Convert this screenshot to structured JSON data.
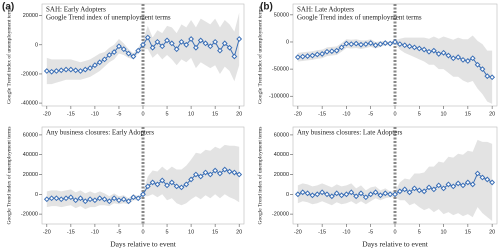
{
  "panel_labels": [
    "(a)",
    "(b)"
  ],
  "chart_data": [
    {
      "type": "line",
      "title": "SAH: Early Adopters",
      "subtitle": "Google Trend index of unemployment terms",
      "ylabel": "Google Trend index of unemployment terms",
      "x": [
        -20,
        -19,
        -18,
        -17,
        -16,
        -15,
        -14,
        -13,
        -12,
        -11,
        -10,
        -9,
        -8,
        -7,
        -6,
        -5,
        -4,
        -3,
        -2,
        -1,
        0,
        1,
        2,
        3,
        4,
        5,
        6,
        7,
        8,
        9,
        10,
        11,
        12,
        13,
        14,
        15,
        16,
        17,
        18,
        19,
        20
      ],
      "values": [
        -18000,
        -18500,
        -18000,
        -17500,
        -17000,
        -17000,
        -17500,
        -18000,
        -17000,
        -16000,
        -14000,
        -12000,
        -10000,
        -7000,
        -5000,
        -1000,
        -3000,
        -6000,
        -8000,
        -4000,
        0,
        5000,
        -2000,
        2000,
        -1000,
        3000,
        1000,
        -3000,
        2000,
        0,
        4000,
        -2000,
        3000,
        1000,
        -1000,
        2000,
        -4000,
        1000,
        -2000,
        -8000,
        4000
      ],
      "lower": [
        -27000,
        -27000,
        -26000,
        -25000,
        -24000,
        -24000,
        -24000,
        -24000,
        -23000,
        -22000,
        -20000,
        -18000,
        -15000,
        -12000,
        -10000,
        -6000,
        -7000,
        -9000,
        -10000,
        -6000,
        -3000,
        -3000,
        -9000,
        -6000,
        -10000,
        -7000,
        -10000,
        -14000,
        -10000,
        -12000,
        -9000,
        -16000,
        -12000,
        -14000,
        -16000,
        -14000,
        -20000,
        -15000,
        -18000,
        -25000,
        -14000
      ],
      "upper": [
        -9000,
        -10000,
        -10000,
        -10000,
        -10000,
        -10000,
        -11000,
        -12000,
        -11000,
        -10000,
        -8000,
        -6000,
        -5000,
        -2000,
        0,
        4000,
        1000,
        -3000,
        -6000,
        -2000,
        3000,
        13000,
        5000,
        10000,
        8000,
        13000,
        12000,
        8000,
        14000,
        12000,
        17000,
        12000,
        18000,
        16000,
        14000,
        18000,
        12000,
        17000,
        14000,
        9000,
        22000
      ],
      "color": "#3b6fb6",
      "band_color": "#e3e3e3",
      "event_x": 0,
      "xlim": [
        -21,
        21
      ],
      "xticks": [
        -20,
        -15,
        -10,
        -5,
        0,
        5,
        10,
        15,
        20
      ],
      "ylim": [
        -42000,
        28000
      ],
      "yticks": [
        20000,
        0,
        -20000,
        -40000
      ]
    },
    {
      "type": "line",
      "title": "Any business closures: Early Adopters",
      "ylabel": "Google Trend index of unemployment terms",
      "xlabel": "Days relative to event",
      "x": [
        -20,
        -19,
        -18,
        -17,
        -16,
        -15,
        -14,
        -13,
        -12,
        -11,
        -10,
        -9,
        -8,
        -7,
        -6,
        -5,
        -4,
        -3,
        -2,
        -1,
        0,
        1,
        2,
        3,
        4,
        5,
        6,
        7,
        8,
        9,
        10,
        11,
        12,
        13,
        14,
        15,
        16,
        17,
        18,
        19,
        20
      ],
      "values": [
        -5000,
        -4000,
        -4000,
        -5000,
        -4000,
        -3000,
        -6000,
        -4000,
        -7000,
        -5000,
        -6000,
        -4000,
        -5000,
        -7000,
        -4000,
        -6000,
        -5000,
        -7000,
        -3000,
        -4000,
        0,
        8000,
        12000,
        10000,
        14000,
        9000,
        12000,
        8000,
        7000,
        10000,
        15000,
        20000,
        18000,
        22000,
        20000,
        24000,
        21000,
        25000,
        23000,
        22000,
        20000
      ],
      "lower": [
        -13000,
        -12000,
        -12000,
        -13000,
        -12000,
        -11000,
        -14000,
        -12000,
        -15000,
        -13000,
        -13000,
        -11000,
        -11000,
        -12000,
        -9000,
        -10000,
        -9000,
        -10000,
        -6000,
        -6000,
        -2000,
        -2000,
        0,
        -3000,
        0,
        -6000,
        -4000,
        -9000,
        -11000,
        -9000,
        -5000,
        -2000,
        -5000,
        -1000,
        -4000,
        0,
        -4000,
        0,
        -3000,
        -5000,
        -8000
      ],
      "upper": [
        3000,
        4000,
        4000,
        3000,
        4000,
        5000,
        2000,
        4000,
        1000,
        3000,
        1000,
        3000,
        1000,
        -2000,
        1000,
        -2000,
        -1000,
        -4000,
        0,
        -2000,
        2000,
        18000,
        24000,
        23000,
        28000,
        24000,
        28000,
        25000,
        25000,
        29000,
        35000,
        42000,
        41000,
        45000,
        44000,
        48000,
        46000,
        50000,
        49000,
        49000,
        48000
      ],
      "color": "#3b6fb6",
      "band_color": "#e3e3e3",
      "event_x": 0,
      "xlim": [
        -21,
        21
      ],
      "xticks": [
        -20,
        -15,
        -10,
        -5,
        0,
        5,
        10,
        15,
        20
      ],
      "ylim": [
        -30000,
        68000
      ],
      "yticks": [
        60000,
        40000,
        20000,
        0,
        -20000
      ]
    },
    {
      "type": "line",
      "title": "SAH: Late Adopters",
      "subtitle": "Google Trend index of unemployment terms",
      "ylabel": "Google Trend index of unemployment terms",
      "x": [
        -20,
        -19,
        -18,
        -17,
        -16,
        -15,
        -14,
        -13,
        -12,
        -11,
        -10,
        -9,
        -8,
        -7,
        -6,
        -5,
        -4,
        -3,
        -2,
        -1,
        0,
        1,
        2,
        3,
        4,
        5,
        6,
        7,
        8,
        9,
        10,
        11,
        12,
        13,
        14,
        15,
        16,
        17,
        18,
        19,
        20
      ],
      "values": [
        -28000,
        -27000,
        -26000,
        -25000,
        -23000,
        -22000,
        -18000,
        -17000,
        -16000,
        -10000,
        -3000,
        -4000,
        -3000,
        -5000,
        -4000,
        -2000,
        -6000,
        -4000,
        -2000,
        -3000,
        0,
        -4000,
        -6000,
        -8000,
        -10000,
        -12000,
        -14000,
        -18000,
        -16000,
        -22000,
        -20000,
        -25000,
        -30000,
        -28000,
        -33000,
        -35000,
        -30000,
        -42000,
        -50000,
        -63000,
        -65000
      ],
      "lower": [
        -36000,
        -35000,
        -34000,
        -33000,
        -31000,
        -30000,
        -26000,
        -25000,
        -24000,
        -18000,
        -11000,
        -12000,
        -11000,
        -13000,
        -11000,
        -9000,
        -12000,
        -9000,
        -6000,
        -6000,
        -3000,
        -14000,
        -20000,
        -24000,
        -28000,
        -32000,
        -36000,
        -42000,
        -42000,
        -50000,
        -50000,
        -57000,
        -64000,
        -64000,
        -71000,
        -75000,
        -72000,
        -86000,
        -96000,
        -110000,
        -114000
      ],
      "upper": [
        -20000,
        -19000,
        -18000,
        -17000,
        -15000,
        -14000,
        -10000,
        -9000,
        -8000,
        -2000,
        5000,
        4000,
        5000,
        3000,
        3000,
        5000,
        0,
        1000,
        2000,
        0,
        3000,
        6000,
        8000,
        8000,
        8000,
        8000,
        8000,
        6000,
        10000,
        6000,
        10000,
        7000,
        4000,
        8000,
        5000,
        5000,
        12000,
        2000,
        -4000,
        -16000,
        -16000
      ],
      "color": "#3b6fb6",
      "band_color": "#e3e3e3",
      "event_x": 0,
      "xlim": [
        -21,
        21
      ],
      "xticks": [
        -20,
        -15,
        -10,
        -5,
        0,
        5,
        10,
        15,
        20
      ],
      "ylim": [
        -118000,
        70000
      ],
      "yticks": [
        50000,
        0,
        -50000,
        -100000
      ]
    },
    {
      "type": "line",
      "title": "Any business closures: Late Adopters",
      "ylabel": "Google Trend index of unemployment terms",
      "xlabel": "Days relative to event",
      "x": [
        -20,
        -19,
        -18,
        -17,
        -16,
        -15,
        -14,
        -13,
        -12,
        -11,
        -10,
        -9,
        -8,
        -7,
        -6,
        -5,
        -4,
        -3,
        -2,
        -1,
        0,
        1,
        2,
        3,
        4,
        5,
        6,
        7,
        8,
        9,
        10,
        11,
        12,
        13,
        14,
        15,
        16,
        17,
        18,
        19,
        20
      ],
      "values": [
        0,
        2000,
        1000,
        -1000,
        0,
        2000,
        0,
        -2000,
        1000,
        -1000,
        0,
        2000,
        -2000,
        1000,
        -3000,
        0,
        2000,
        -1000,
        1000,
        0,
        0,
        3000,
        5000,
        2000,
        6000,
        4000,
        3000,
        7000,
        5000,
        9000,
        6000,
        10000,
        8000,
        11000,
        9000,
        12000,
        10000,
        21000,
        17000,
        15000,
        12000
      ],
      "lower": [
        -9000,
        -7000,
        -8000,
        -10000,
        -9000,
        -7000,
        -9000,
        -11000,
        -8000,
        -10000,
        -9000,
        -7000,
        -10000,
        -7000,
        -10000,
        -7000,
        -4000,
        -6000,
        -4000,
        -3000,
        -3000,
        -6000,
        -6000,
        -11000,
        -9000,
        -13000,
        -16000,
        -14000,
        -18000,
        -15000,
        -20000,
        -18000,
        -21000,
        -19000,
        -22000,
        -20000,
        -23000,
        -13000,
        -19000,
        -23000,
        -27000
      ],
      "upper": [
        9000,
        11000,
        10000,
        8000,
        9000,
        11000,
        9000,
        7000,
        10000,
        8000,
        9000,
        11000,
        6000,
        9000,
        4000,
        7000,
        8000,
        4000,
        6000,
        3000,
        3000,
        12000,
        16000,
        15000,
        21000,
        21000,
        22000,
        28000,
        28000,
        33000,
        32000,
        38000,
        37000,
        41000,
        40000,
        44000,
        43000,
        55000,
        53000,
        53000,
        51000
      ],
      "color": "#3b6fb6",
      "band_color": "#e3e3e3",
      "event_x": 0,
      "xlim": [
        -21,
        21
      ],
      "xticks": [
        -20,
        -15,
        -10,
        -5,
        0,
        5,
        10,
        15,
        20
      ],
      "ylim": [
        -30000,
        68000
      ],
      "yticks": [
        60000,
        40000,
        20000,
        0,
        -20000
      ]
    }
  ]
}
